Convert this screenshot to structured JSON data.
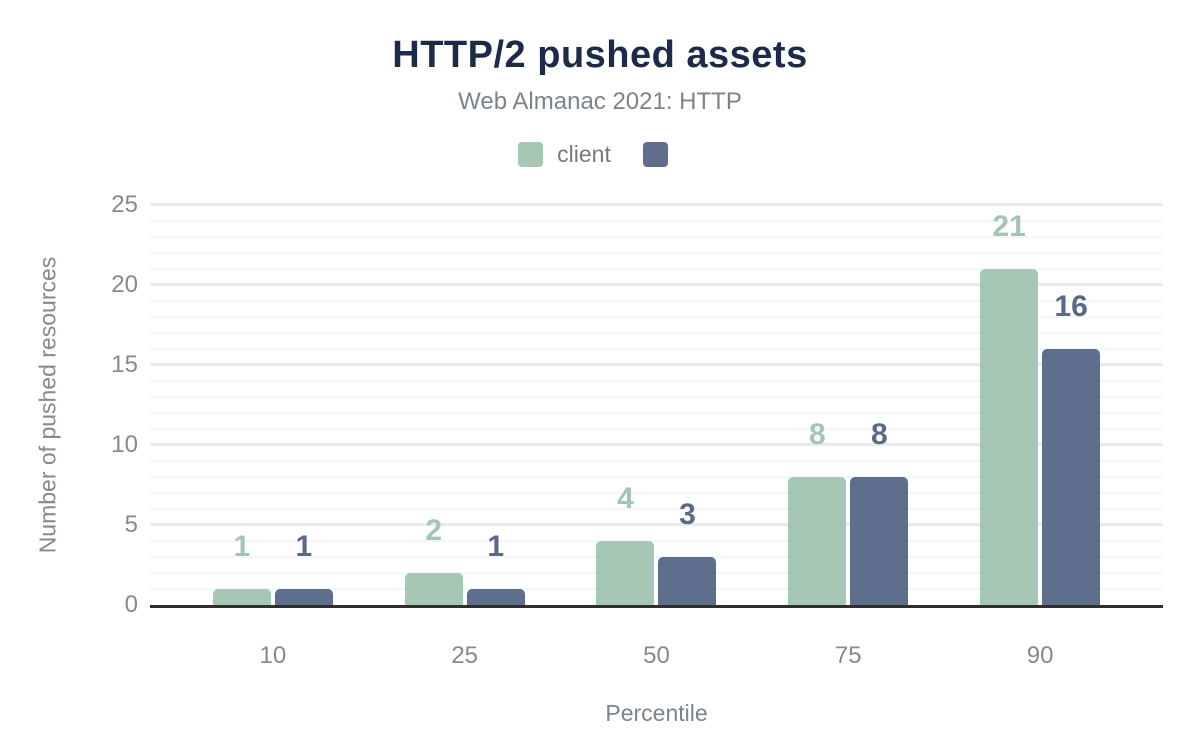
{
  "header": {
    "title": "HTTP/2 pushed assets",
    "subtitle": "Web Almanac 2021: HTTP"
  },
  "chart_data": {
    "type": "bar",
    "title": "HTTP/2 pushed assets",
    "subtitle": "Web Almanac 2021: HTTP",
    "categories": [
      "10",
      "25",
      "50",
      "75",
      "90"
    ],
    "series": [
      {
        "name": "client",
        "color": "#a5c7b4",
        "label_color": "#a3c6b2",
        "values": [
          1,
          2,
          4,
          8,
          21
        ]
      },
      {
        "name": "",
        "color": "#5e6e8e",
        "label_color": "#5a698b",
        "values": [
          1,
          1,
          3,
          8,
          16
        ]
      }
    ],
    "xlabel": "Percentile",
    "ylabel": "Number of pushed resources",
    "ylim": [
      0,
      25
    ],
    "yticks": [
      0,
      5,
      10,
      15,
      20,
      25
    ],
    "grid": "horizontal; minor line every 1 unit, major line every 5 units",
    "legend_position": "top",
    "colors": {
      "title": "#1c2b4a",
      "subtitle_text": "#7d838c",
      "axis_text": "#85898f",
      "axis_line": "#2f2f2f",
      "major_grid": "#ebebed",
      "minor_grid": "#f5f5f6"
    }
  }
}
